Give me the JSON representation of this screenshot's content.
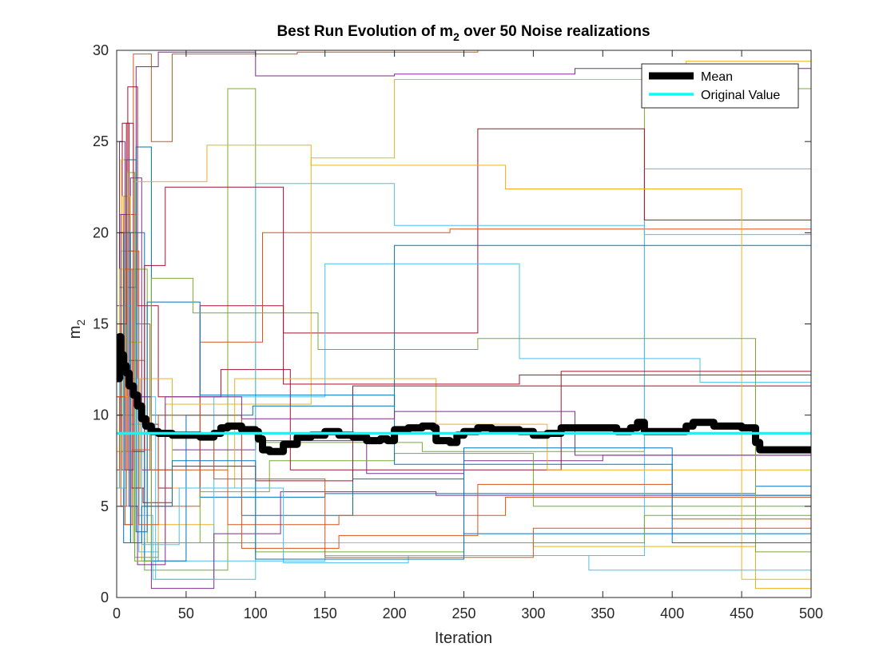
{
  "chart_data": {
    "type": "line",
    "title_main": "Best Run Evolution of m",
    "title_sub": "2",
    "title_rest": " over 50 Noise realizations",
    "xlabel": "Iteration",
    "ylabel_main": "m",
    "ylabel_sub": "2",
    "xlim": [
      0,
      500
    ],
    "ylim": [
      0,
      30
    ],
    "xticks": [
      0,
      50,
      100,
      150,
      200,
      250,
      300,
      350,
      400,
      450,
      500
    ],
    "yticks": [
      0,
      5,
      10,
      15,
      20,
      25,
      30
    ],
    "grid": false,
    "legend_position": "top-right",
    "legend": [
      {
        "label": "Mean",
        "color": "#000000"
      },
      {
        "label": "Original Value",
        "color": "#00FFFF"
      }
    ],
    "palette": [
      "#0072BD",
      "#D95319",
      "#EDB120",
      "#7E2F8E",
      "#77AC30",
      "#4DBEEE",
      "#A2142F"
    ],
    "original_value": 9.0,
    "series": [
      {
        "x": [
          0,
          2,
          4,
          8,
          15,
          20,
          60,
          150,
          460,
          500
        ],
        "y": [
          12,
          25,
          8,
          20,
          6,
          9,
          5.5,
          5.7,
          6.1,
          6.1
        ]
      },
      {
        "x": [
          0,
          3,
          6,
          12,
          25,
          40,
          70,
          130,
          260,
          500
        ],
        "y": [
          10,
          18,
          4,
          29.8,
          25,
          29.8,
          29.8,
          29.9,
          30,
          30
        ]
      },
      {
        "x": [
          0,
          2,
          5,
          10,
          18,
          30,
          70,
          200,
          300,
          460,
          500
        ],
        "y": [
          15,
          8,
          22,
          14,
          2,
          4,
          3,
          3,
          2.8,
          0.5,
          0.5
        ]
      },
      {
        "x": [
          0,
          4,
          8,
          14,
          30,
          100,
          200,
          330,
          500
        ],
        "y": [
          9,
          20,
          11,
          29.1,
          29.9,
          28.6,
          28.7,
          29,
          30
        ]
      },
      {
        "x": [
          0,
          3,
          7,
          12,
          20,
          80,
          100,
          220,
          380,
          500
        ],
        "y": [
          14,
          6,
          19,
          3,
          1.5,
          27.9,
          8.5,
          8,
          27.9,
          27.9
        ]
      },
      {
        "x": [
          0,
          2,
          6,
          10,
          16,
          30,
          90,
          150,
          380,
          500
        ],
        "y": [
          7,
          15,
          5,
          12,
          2.5,
          2,
          2,
          2.3,
          23.5,
          23.5
        ]
      },
      {
        "x": [
          0,
          4,
          9,
          15,
          30,
          60,
          120,
          260,
          380,
          500
        ],
        "y": [
          11,
          26,
          13,
          9.5,
          6,
          16,
          14.5,
          25.7,
          20.7,
          20.7
        ]
      },
      {
        "x": [
          0,
          3,
          8,
          14,
          25,
          90,
          170,
          250,
          320,
          500
        ],
        "y": [
          13,
          7,
          17,
          24.7,
          10,
          4.5,
          6.5,
          3.5,
          3.5,
          3.5
        ]
      },
      {
        "x": [
          0,
          2,
          5,
          11,
          20,
          60,
          105,
          240,
          500
        ],
        "y": [
          8,
          21,
          4,
          13,
          5,
          14,
          20,
          20.2,
          19.8
        ]
      },
      {
        "x": [
          0,
          3,
          7,
          13,
          35,
          140,
          200,
          410,
          500
        ],
        "y": [
          12,
          24,
          8,
          3,
          10.6,
          24.1,
          28.4,
          29.4,
          29.4
        ]
      },
      {
        "x": [
          0,
          5,
          10,
          18,
          40,
          100,
          180,
          250,
          350,
          500
        ],
        "y": [
          16,
          9,
          23,
          7,
          8.1,
          8.6,
          6.8,
          7.5,
          7.8,
          7.8
        ]
      },
      {
        "x": [
          0,
          2,
          6,
          12,
          22,
          60,
          110,
          200,
          300,
          500
        ],
        "y": [
          6,
          14,
          10,
          18,
          3,
          5.8,
          7.5,
          7.9,
          5,
          5
        ]
      },
      {
        "x": [
          0,
          3,
          9,
          16,
          28,
          70,
          150,
          290,
          420,
          500
        ],
        "y": [
          10,
          19,
          5,
          11,
          1,
          11,
          18.3,
          13.1,
          11.8,
          11.8
        ]
      },
      {
        "x": [
          0,
          4,
          8,
          15,
          30,
          75,
          125,
          320,
          500
        ],
        "y": [
          15,
          11,
          28,
          16,
          11,
          12.5,
          7,
          12.4,
          12.4
        ]
      },
      {
        "x": [
          0,
          2,
          5,
          10,
          20,
          50,
          98,
          200,
          330,
          500
        ],
        "y": [
          9,
          17,
          3,
          20,
          2,
          10,
          10.5,
          19.3,
          19.3,
          19.3
        ]
      },
      {
        "x": [
          0,
          3,
          7,
          14,
          24,
          80,
          160,
          280,
          500
        ],
        "y": [
          11,
          5,
          21,
          15,
          7,
          4,
          4.5,
          5.5,
          5.5
        ]
      },
      {
        "x": [
          0,
          4,
          10,
          17,
          40,
          85,
          230,
          310,
          500
        ],
        "y": [
          14,
          22,
          6,
          12,
          6,
          12,
          9.5,
          7,
          6.4
        ]
      },
      {
        "x": [
          0,
          2,
          6,
          12,
          25,
          70,
          118,
          230,
          500
        ],
        "y": [
          10,
          25,
          7,
          11,
          0.5,
          3.5,
          5.8,
          5.6,
          5.6
        ]
      },
      {
        "x": [
          0,
          3,
          8,
          13,
          30,
          100,
          250,
          380,
          500
        ],
        "y": [
          13,
          8,
          18,
          2.2,
          3,
          2.5,
          3,
          4.5,
          3.6
        ]
      },
      {
        "x": [
          0,
          5,
          9,
          15,
          26,
          100,
          200,
          380,
          500
        ],
        "y": [
          7,
          16,
          12,
          4.5,
          1,
          22.7,
          20.4,
          19.9,
          19.9
        ]
      },
      {
        "x": [
          0,
          2,
          5,
          11,
          19,
          40,
          100,
          170,
          300,
          500
        ],
        "y": [
          12,
          20,
          9,
          6,
          5.2,
          7.2,
          6.4,
          11.6,
          11.6,
          11.6
        ]
      },
      {
        "x": [
          0,
          3,
          7,
          14,
          22,
          60,
          200,
          400,
          500
        ],
        "y": [
          9,
          13,
          24,
          3.6,
          16.2,
          11.1,
          7.3,
          5.6,
          6
        ]
      },
      {
        "x": [
          0,
          4,
          8,
          16,
          30,
          90,
          160,
          260,
          400,
          500
        ],
        "y": [
          11,
          7,
          19,
          4,
          10,
          2.7,
          3.4,
          6.2,
          4.3,
          4.3
        ]
      },
      {
        "x": [
          0,
          2,
          6,
          12,
          28,
          65,
          140,
          280,
          450,
          500
        ],
        "y": [
          8,
          18,
          11,
          22.8,
          22.8,
          24.8,
          23.7,
          22.4,
          1,
          1
        ]
      },
      {
        "x": [
          0,
          3,
          9,
          15,
          35,
          90,
          200,
          330,
          500
        ],
        "y": [
          14,
          21,
          5,
          1.8,
          11,
          9.8,
          10.2,
          7.8,
          7.8
        ]
      },
      {
        "x": [
          0,
          4,
          8,
          13,
          25,
          55,
          145,
          260,
          460,
          500
        ],
        "y": [
          10,
          12,
          23.3,
          2,
          17.5,
          15.6,
          13.6,
          14.2,
          2.5,
          2.5
        ]
      },
      {
        "x": [
          0,
          2,
          5,
          10,
          18,
          45,
          120,
          210,
          340,
          500
        ],
        "y": [
          13,
          6,
          16,
          9.5,
          2.9,
          6,
          1.9,
          2.3,
          1.5,
          1.5
        ]
      },
      {
        "x": [
          0,
          3,
          7,
          12,
          20,
          35,
          120,
          290,
          500
        ],
        "y": [
          9,
          15,
          26,
          8,
          18.2,
          22.5,
          11.7,
          12.2,
          12.2
        ]
      },
      {
        "x": [
          0,
          5,
          10,
          18,
          40,
          100,
          250,
          400,
          500
        ],
        "y": [
          12,
          20,
          3,
          5,
          7.5,
          2.1,
          8.2,
          3,
          2.7
        ]
      },
      {
        "x": [
          0,
          2,
          6,
          11,
          24,
          70,
          150,
          300,
          500
        ],
        "y": [
          7,
          11,
          18,
          8.1,
          9,
          6.5,
          2.2,
          3.8,
          3.1
        ]
      }
    ],
    "mean": {
      "x": [
        0,
        2,
        3,
        5,
        7,
        9,
        12,
        15,
        18,
        21,
        25,
        30,
        40,
        50,
        60,
        70,
        75,
        80,
        90,
        100,
        102,
        105,
        110,
        120,
        130,
        140,
        150,
        160,
        170,
        180,
        190,
        195,
        200,
        210,
        220,
        228,
        230,
        240,
        245,
        250,
        260,
        270,
        280,
        290,
        300,
        310,
        320,
        340,
        360,
        370,
        375,
        380,
        400,
        410,
        415,
        430,
        450,
        460,
        463,
        480,
        500
      ],
      "y": [
        12,
        14.3,
        13.3,
        12.7,
        12.3,
        11.6,
        11.1,
        10.5,
        9.8,
        9.4,
        9.1,
        9.0,
        8.9,
        8.9,
        8.8,
        9.0,
        9.3,
        9.4,
        9.2,
        9.1,
        8.7,
        8.1,
        8.0,
        8.4,
        8.8,
        8.9,
        9.1,
        8.9,
        8.8,
        8.6,
        8.7,
        8.6,
        9.2,
        9.3,
        9.4,
        9.3,
        8.6,
        8.5,
        8.9,
        9.1,
        9.3,
        9.2,
        9.2,
        9.1,
        8.9,
        9.0,
        9.3,
        9.3,
        9.1,
        9.3,
        9.6,
        9.1,
        9.1,
        9.4,
        9.6,
        9.4,
        9.3,
        8.5,
        8.1,
        8.1,
        8.1
      ]
    }
  }
}
